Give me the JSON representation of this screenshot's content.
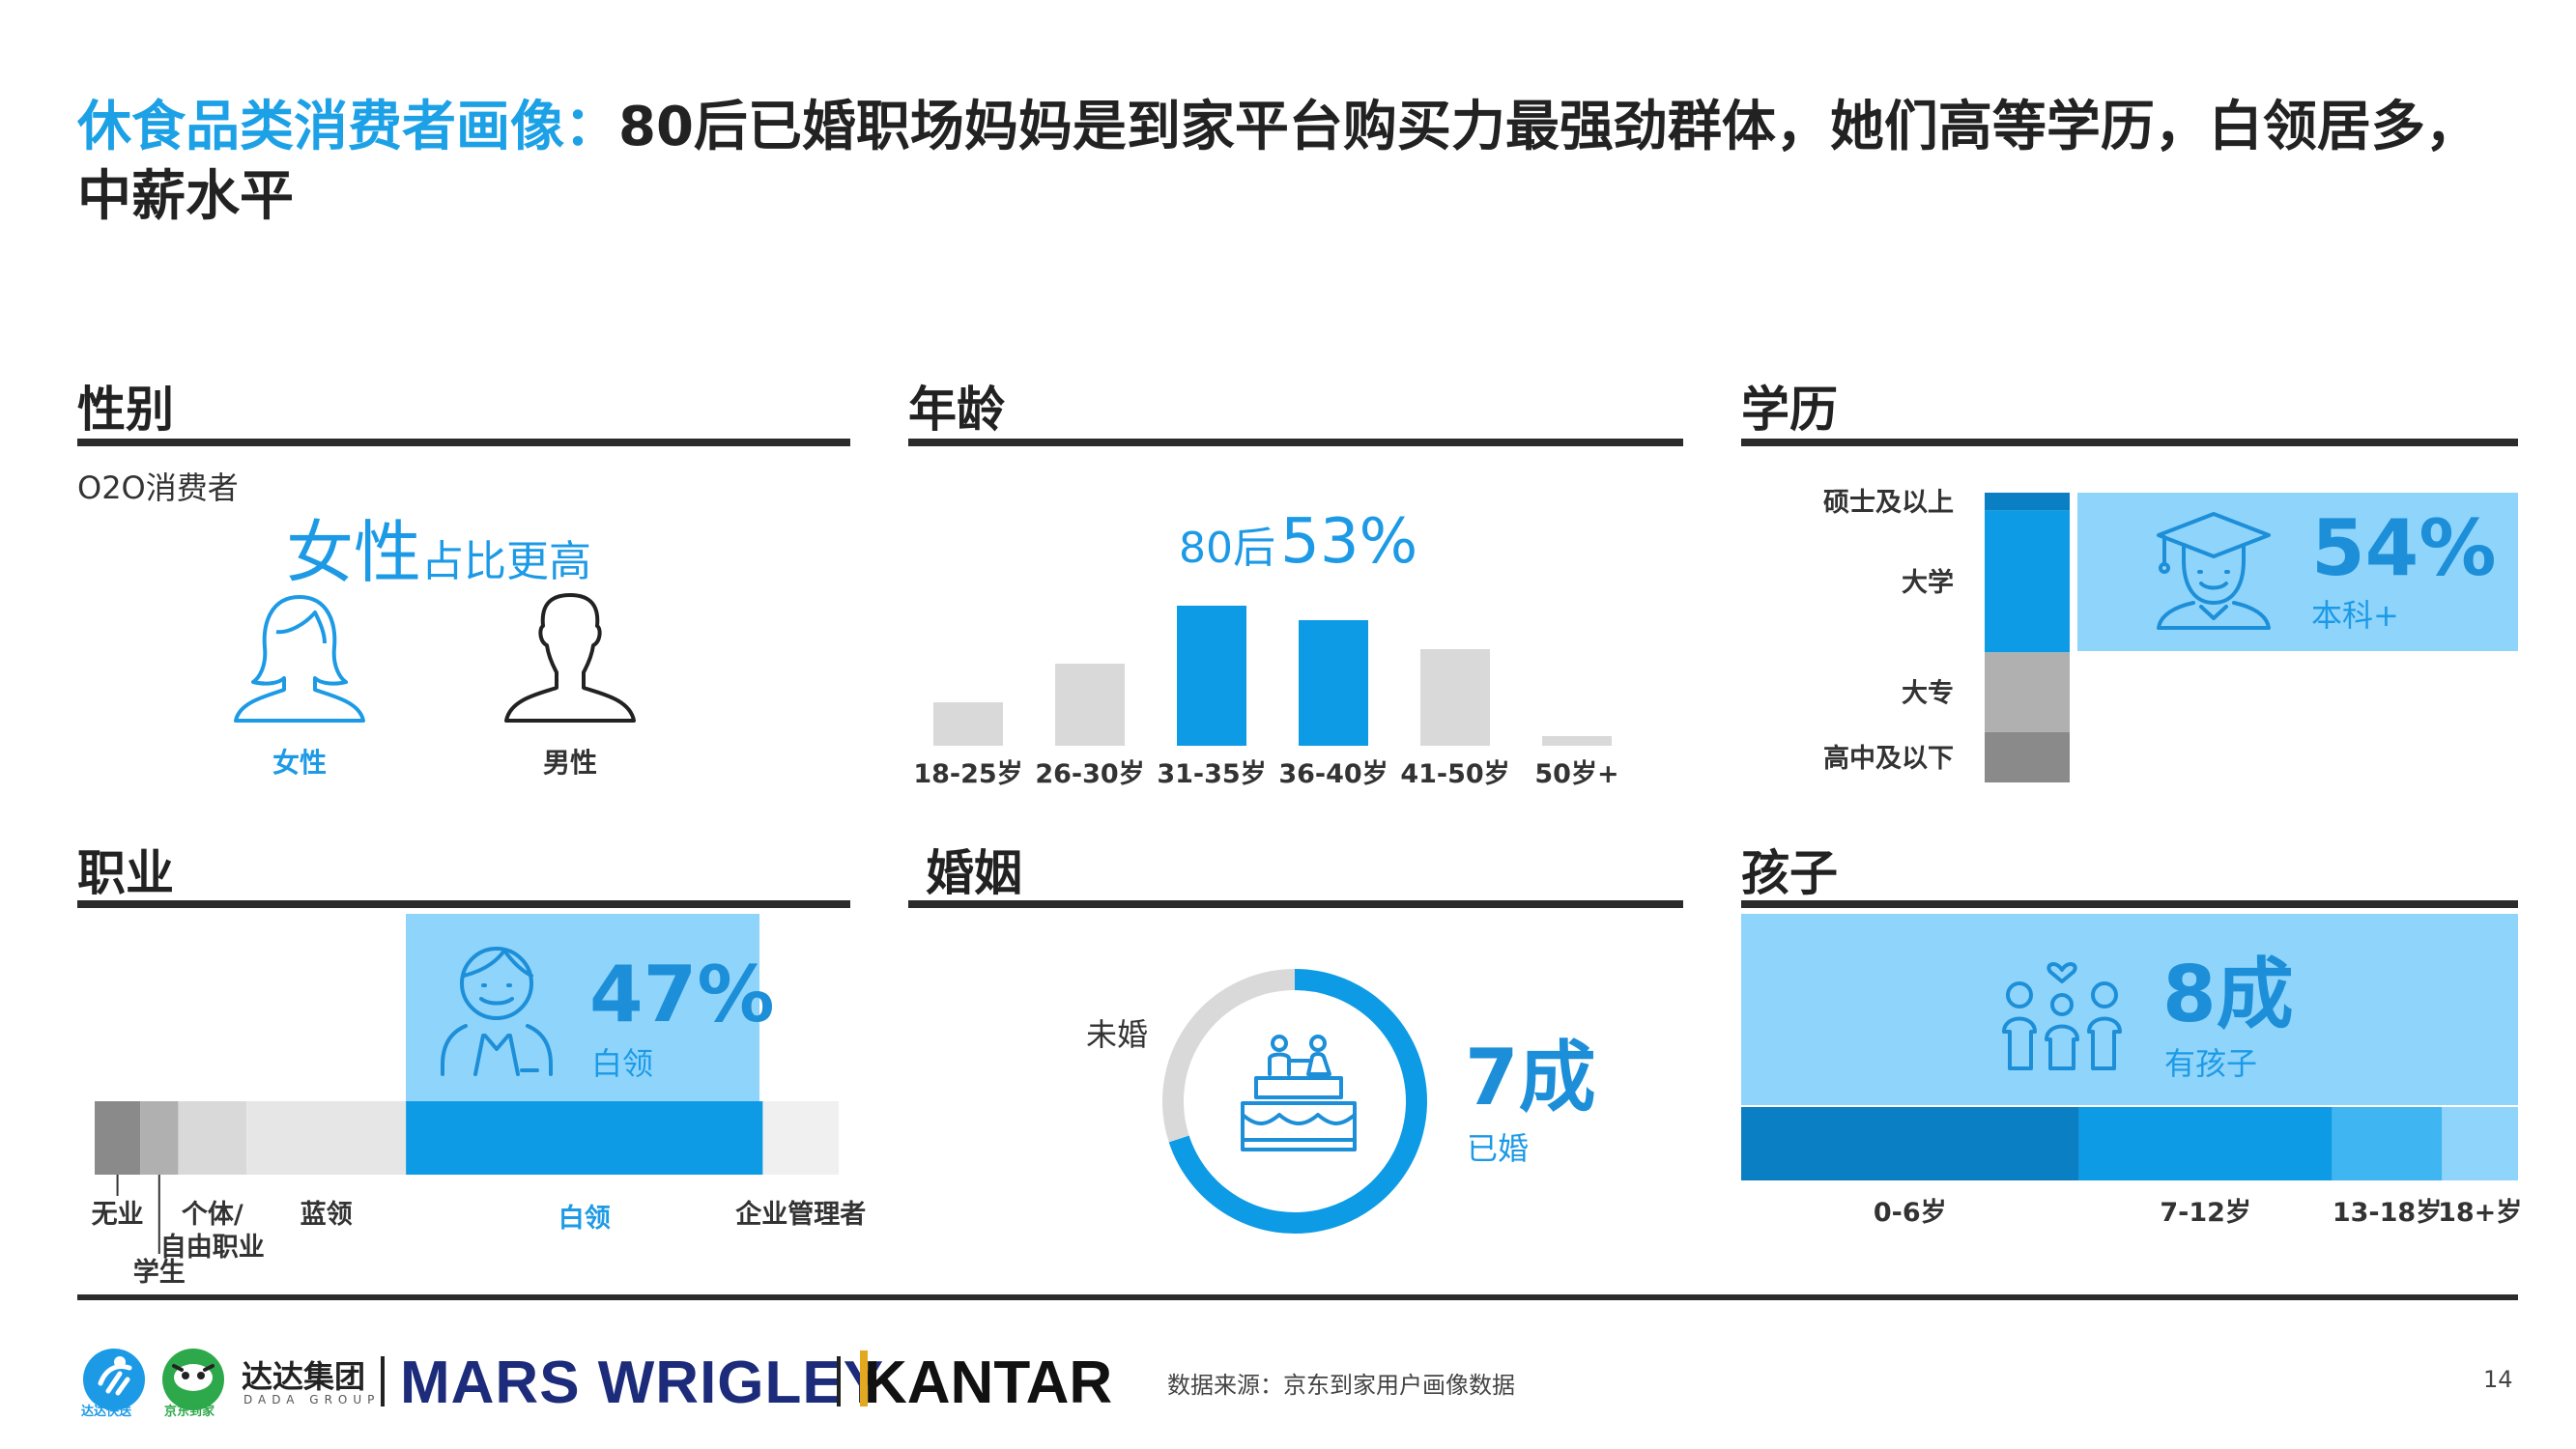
{
  "title": {
    "accent": "休食品类消费者画像：",
    "main": "80后已婚职场妈妈是到家平台购买力最强劲群体，她们高等学历，白领居多，中薪水平"
  },
  "sections": {
    "gender": {
      "title": "性别",
      "subtitle": "O2O消费者",
      "headline_big": "女性",
      "headline_small": "占比更高",
      "female_label": "女性",
      "male_label": "男性",
      "icons": [
        "female-person-icon",
        "male-person-icon"
      ]
    },
    "age": {
      "title": "年龄",
      "headline_prefix": "80后",
      "headline_value": "53%"
    },
    "education": {
      "title": "学历",
      "highlight_value": "54%",
      "highlight_label": "本科+",
      "icon": "graduate-icon"
    },
    "occupation": {
      "title": "职业",
      "highlight_value": "47%",
      "highlight_label": "白领",
      "icon": "office-worker-icon"
    },
    "marriage": {
      "title": "婚姻",
      "unmarried_label": "未婚",
      "highlight_value": "7成",
      "highlight_label": "已婚",
      "icon": "wedding-cake-icon"
    },
    "children": {
      "title": "孩子",
      "highlight_value": "8成",
      "highlight_label": "有孩子",
      "icon": "family-icon"
    }
  },
  "colors": {
    "accent": "#1da1e6",
    "bar_blue": "#0d9be6",
    "light_blue": "#8fd4fb",
    "gray_bar": "#d9d9d9",
    "dark_rule": "#2b2b2b"
  },
  "chart_data": [
    {
      "id": "age",
      "type": "bar",
      "categories": [
        "18-25岁",
        "26-30岁",
        "31-35岁",
        "36-40岁",
        "41-50岁",
        "50岁+"
      ],
      "values": [
        9,
        17,
        29,
        26,
        20,
        2
      ],
      "highlighted": [
        "31-35岁",
        "36-40岁"
      ]
    },
    {
      "id": "education",
      "type": "bar",
      "orientation": "horizontal-stacked-vertical",
      "categories": [
        "硕士及以上",
        "大学",
        "大专",
        "高中及以下"
      ],
      "values": [
        6,
        48,
        27,
        17
      ],
      "segment_colors": [
        "#0b7fc4",
        "#0d9be6",
        "#b0b0b0",
        "#8a8a8a"
      ]
    },
    {
      "id": "occupation",
      "type": "bar",
      "orientation": "stacked-horizontal",
      "categories": [
        "无业",
        "学生",
        "个体/自由职业",
        "蓝领",
        "白领",
        "企业管理者"
      ],
      "values": [
        6,
        5,
        9,
        21,
        47,
        10
      ],
      "segment_colors": [
        "#8a8a8a",
        "#b0b0b0",
        "#d9d9d9",
        "#e6e6e6",
        "#0d9be6",
        "#f0f0f0"
      ]
    },
    {
      "id": "marriage",
      "type": "pie",
      "categories": [
        "已婚",
        "未婚"
      ],
      "values": [
        70,
        30
      ]
    },
    {
      "id": "children",
      "type": "bar",
      "orientation": "stacked-horizontal",
      "categories": [
        "0-6岁",
        "7-12岁",
        "13-18岁",
        "18+岁"
      ],
      "values": [
        40,
        30,
        13,
        9
      ],
      "segment_colors": [
        "#0b7fc4",
        "#0d9be6",
        "#3fb6f2",
        "#8fd4fb"
      ]
    }
  ],
  "footer": {
    "dada_text": "达达集团",
    "dada_sub": "DADA GROUP",
    "dada_badge": "达达快送",
    "jd_badge": "京东到家",
    "mars": "MARS WRIGLEY",
    "kantar": "KANTAR",
    "source": "数据来源：京东到家用户画像数据",
    "page_number": "14"
  }
}
